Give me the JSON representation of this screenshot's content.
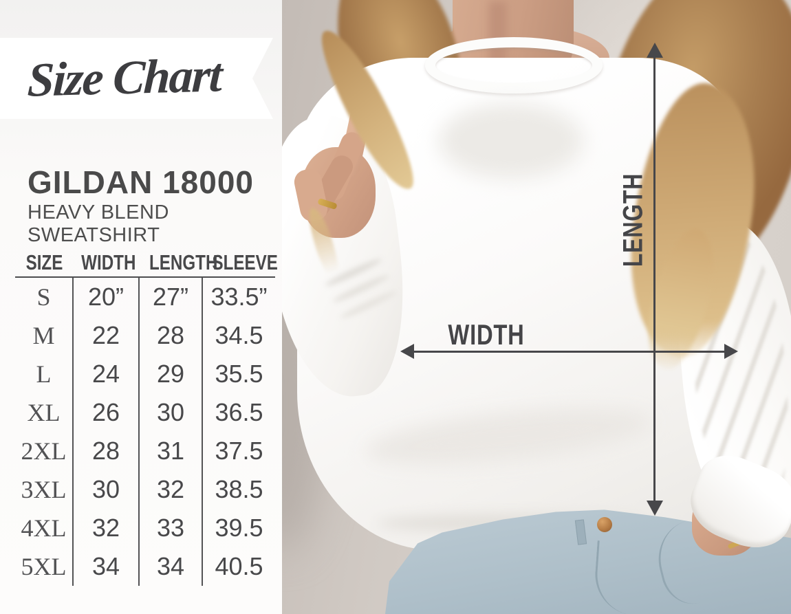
{
  "banner": {
    "title": "Size Chart"
  },
  "product": {
    "name": "GILDAN 18000",
    "subtitle": "HEAVY BLEND SWEATSHIRT"
  },
  "chart_data": {
    "type": "table",
    "title": "Size Chart",
    "product": "GILDAN 18000 Heavy Blend Sweatshirt",
    "units": "inches",
    "columns": [
      "SIZE",
      "WIDTH",
      "LENGTH",
      "SLEEVE"
    ],
    "rows": [
      {
        "size": "S",
        "width": "20”",
        "length": "27”",
        "sleeve": "33.5”"
      },
      {
        "size": "M",
        "width": "22",
        "length": "28",
        "sleeve": "34.5"
      },
      {
        "size": "L",
        "width": "24",
        "length": "29",
        "sleeve": "35.5"
      },
      {
        "size": "XL",
        "width": "26",
        "length": "30",
        "sleeve": "36.5"
      },
      {
        "size": "2XL",
        "width": "28",
        "length": "31",
        "sleeve": "37.5"
      },
      {
        "size": "3XL",
        "width": "30",
        "length": "32",
        "sleeve": "38.5"
      },
      {
        "size": "4XL",
        "width": "32",
        "length": "33",
        "sleeve": "39.5"
      },
      {
        "size": "5XL",
        "width": "34",
        "length": "34",
        "sleeve": "40.5"
      }
    ]
  },
  "photo": {
    "width_label": "WIDTH",
    "length_label": "LENGTH",
    "description": "Model in white crewneck sweatshirt with width and length measurement arrows"
  },
  "colors": {
    "text": "#48484a",
    "arrow": "#47474a",
    "banner_bg": "#ffffff",
    "panel_bg": "#f7f5f4",
    "wall": "#d0c9c3",
    "sweatshirt": "#fbfaf9",
    "jeans": "#aebfc9",
    "hair": "#c49c67"
  }
}
